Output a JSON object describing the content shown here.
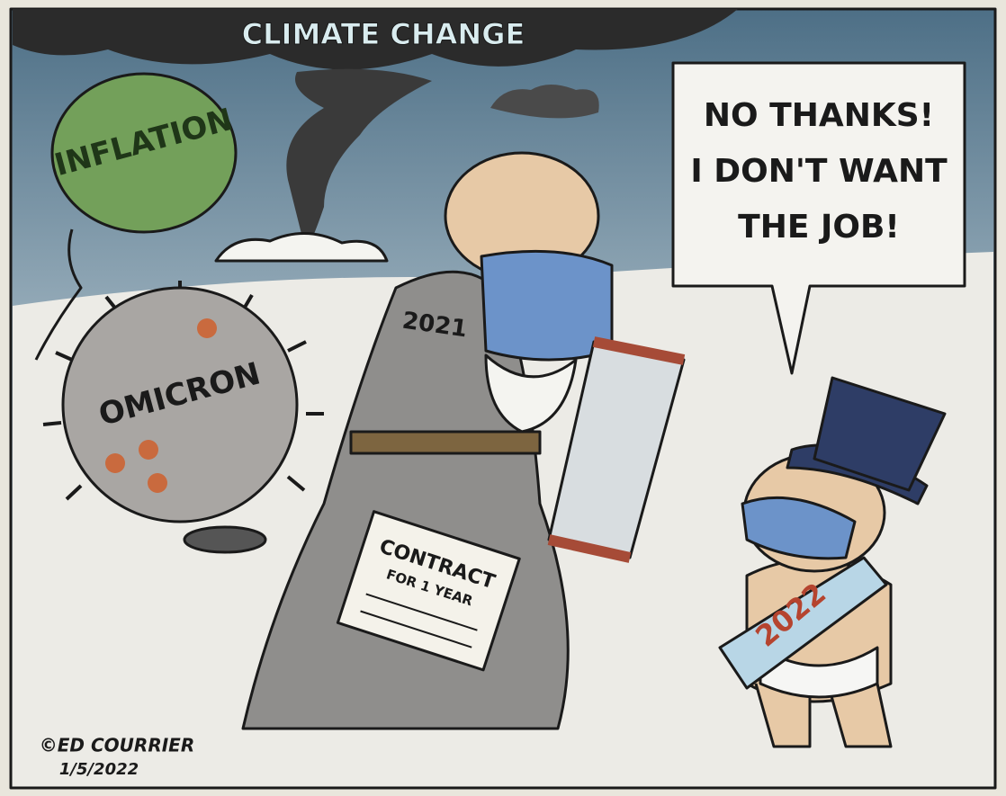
{
  "cartoon": {
    "banner": "CLIMATE CHANGE",
    "balloon_label": "INFLATION",
    "virus_label": "OMICRON",
    "old_year_label": "2021",
    "contract": {
      "title": "CONTRACT",
      "subtitle": "FOR 1 YEAR"
    },
    "speech": [
      "NO THANKS!",
      "I DON'T WANT",
      "THE JOB!"
    ],
    "sash_label": "2022",
    "signature": {
      "artist": "©ED COURRIER",
      "date": "1/5/2022"
    }
  }
}
